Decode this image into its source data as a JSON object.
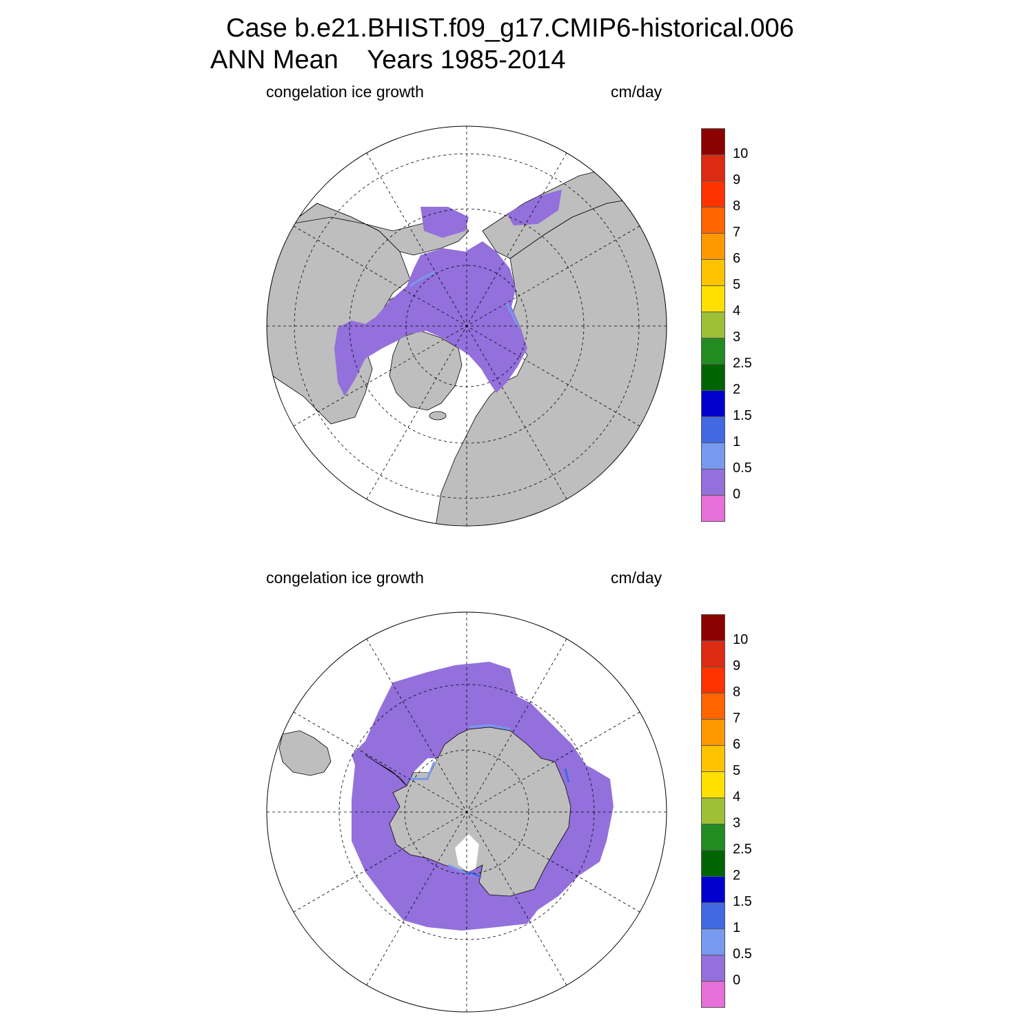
{
  "title": {
    "line1": "Case b.e21.BHIST.f09_g17.CMIP6-historical.006",
    "line2": "ANN Mean    Years 1985-2014"
  },
  "colors": {
    "land": "#bebebe",
    "ocean": "#ffffff",
    "ice_0_to_0_5": "#9370db",
    "ice_0_5_to_1": "#7799ee",
    "ice_1_to_1_5": "#4169e1",
    "ice_1_5_to_2": "#0000cd"
  },
  "panels": [
    {
      "id": "north",
      "hemisphere": "Northern Hemisphere (polar stereographic)",
      "left_string": "congelation ice growth",
      "right_string": "cm/day"
    },
    {
      "id": "south",
      "hemisphere": "Southern Hemisphere (polar stereographic)",
      "left_string": "congelation ice growth",
      "right_string": "cm/day"
    }
  ],
  "colorbar": {
    "labels": [
      "10",
      "9",
      "8",
      "7",
      "6",
      "5",
      "4",
      "3",
      "2.5",
      "2",
      "1.5",
      "1",
      "0.5",
      "0"
    ],
    "colors": [
      "#8b0000",
      "#dd2a12",
      "#ff3300",
      "#ff6600",
      "#ff9900",
      "#ffc400",
      "#ffe000",
      "#9dc036",
      "#228b22",
      "#006400",
      "#0000cd",
      "#4169e1",
      "#7799ee",
      "#9370db",
      "#e66fd8"
    ]
  }
}
